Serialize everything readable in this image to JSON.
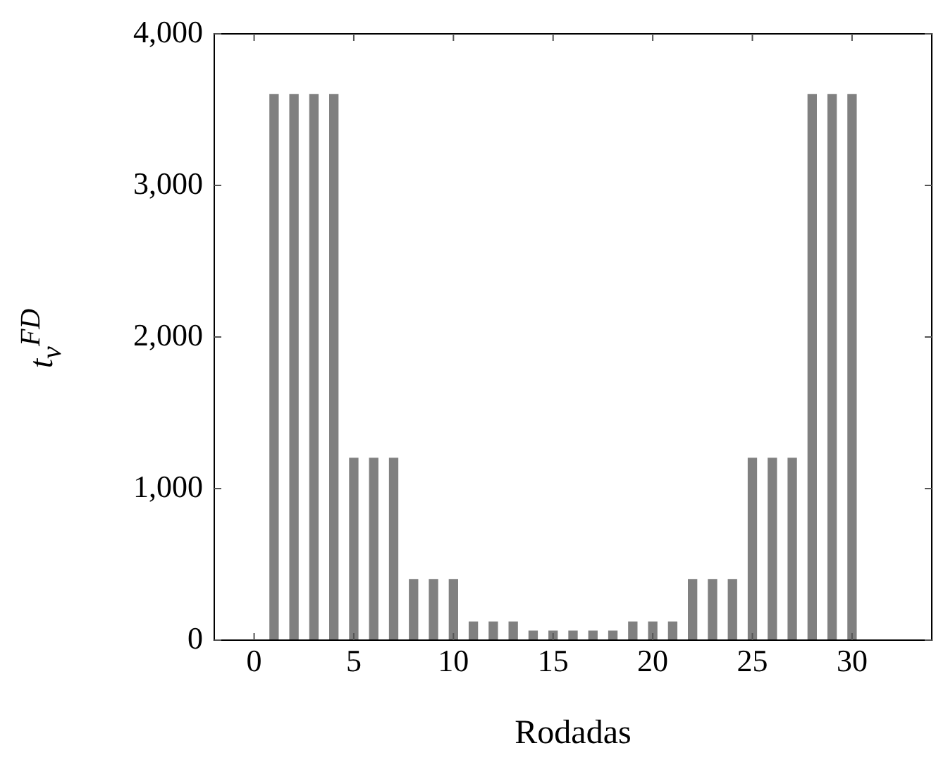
{
  "chart_data": {
    "type": "bar",
    "xlabel": "Rodadas",
    "ylabel": "t$_{v}$$^{FD}$",
    "x": [
      1,
      2,
      3,
      4,
      5,
      6,
      7,
      8,
      9,
      10,
      11,
      12,
      13,
      14,
      15,
      16,
      17,
      18,
      19,
      20,
      21,
      22,
      23,
      24,
      25,
      26,
      27,
      28,
      29,
      30
    ],
    "values": [
      3600,
      3600,
      3600,
      3600,
      1200,
      1200,
      1200,
      400,
      400,
      400,
      120,
      120,
      120,
      60,
      60,
      60,
      60,
      60,
      120,
      120,
      120,
      400,
      400,
      400,
      1200,
      1200,
      1200,
      3600,
      3600,
      3600
    ],
    "color": "#808080",
    "xlim": [
      -2,
      34
    ],
    "xticks": [
      0,
      5,
      10,
      15,
      20,
      25,
      30
    ],
    "ylim": [
      0,
      4000
    ],
    "yticks": [
      0,
      {
        "value": 1000,
        "label": "1,000"
      },
      {
        "value": 2000,
        "label": "2,000"
      },
      {
        "value": 3000,
        "label": "3,000"
      },
      {
        "value": 4000,
        "label": "4,000"
      }
    ],
    "grid": false,
    "legend": false
  }
}
